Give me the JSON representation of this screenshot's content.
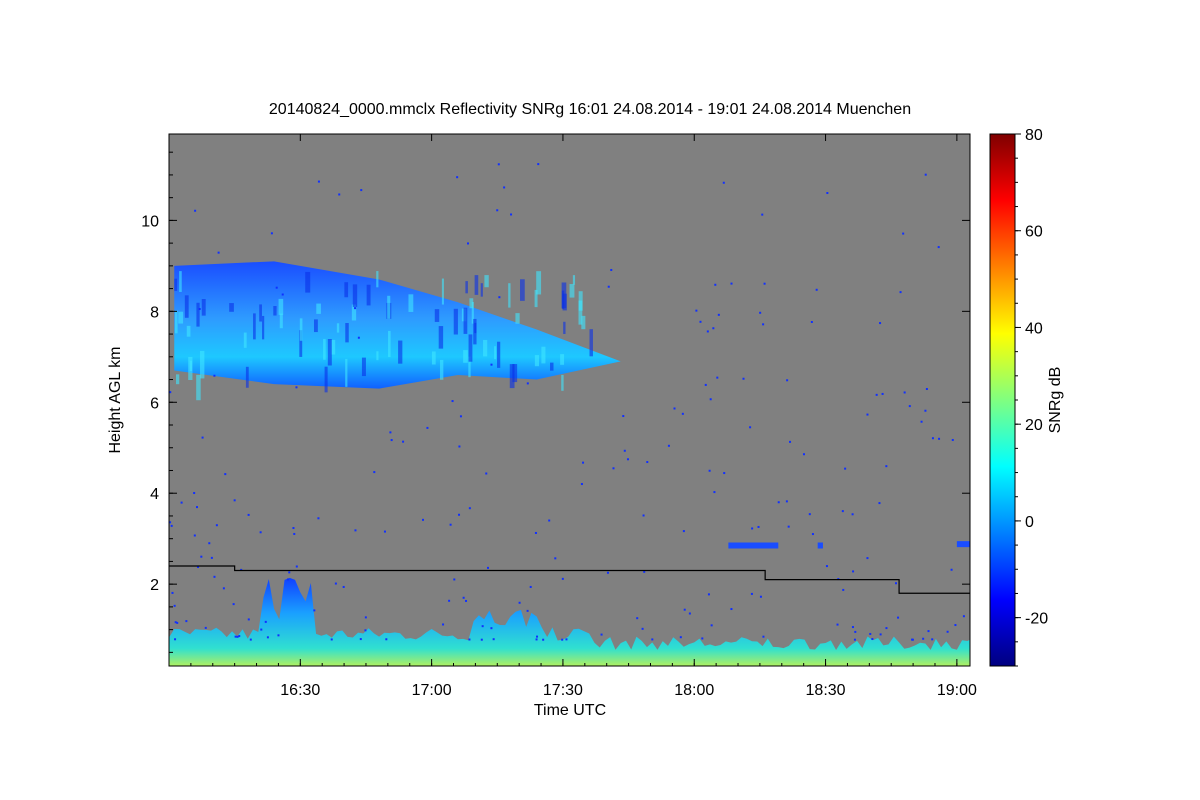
{
  "chart_data": {
    "type": "heatmap",
    "title": "20140824_0000.mmclx Reflectivity SNRg   16:01 24.08.2014 - 19:01 24.08.2014 Muenchen",
    "xlabel": "Time UTC",
    "ylabel": "Height AGL km",
    "colorbar_label": "SNRg dB",
    "xlim_hours": [
      16.0,
      19.05
    ],
    "ylim_km": [
      0.2,
      11.9
    ],
    "x_ticks": [
      {
        "value": 16.5,
        "label": "16:30"
      },
      {
        "value": 17.0,
        "label": "17:00"
      },
      {
        "value": 17.5,
        "label": "17:30"
      },
      {
        "value": 18.0,
        "label": "18:00"
      },
      {
        "value": 18.5,
        "label": "18:30"
      },
      {
        "value": 19.0,
        "label": "19:00"
      }
    ],
    "y_ticks": [
      {
        "value": 2,
        "label": "2"
      },
      {
        "value": 4,
        "label": "4"
      },
      {
        "value": 6,
        "label": "6"
      },
      {
        "value": 8,
        "label": "8"
      },
      {
        "value": 10,
        "label": "10"
      }
    ],
    "colorbar": {
      "range": [
        -30,
        80
      ],
      "ticks": [
        {
          "value": -20,
          "label": "-20"
        },
        {
          "value": 0,
          "label": "0"
        },
        {
          "value": 20,
          "label": "20"
        },
        {
          "value": 40,
          "label": "40"
        },
        {
          "value": 60,
          "label": "60"
        },
        {
          "value": 80,
          "label": "80"
        }
      ],
      "colors": [
        "#00007f",
        "#0000ff",
        "#0080ff",
        "#00ffff",
        "#80ff80",
        "#ffff00",
        "#ff8000",
        "#ff0000",
        "#7f0000"
      ]
    },
    "background_color": "#808080",
    "cirrus_layer": {
      "base_km": [
        6.7,
        6.4,
        6.3,
        6.6,
        6.5,
        6.9
      ],
      "top_km": [
        9.0,
        9.1,
        8.7,
        8.2,
        7.6,
        6.9
      ],
      "time_hours": [
        16.02,
        16.4,
        16.8,
        17.1,
        17.4,
        17.72
      ]
    },
    "boundary_layer_line": {
      "time_hours": [
        16.0,
        16.25,
        16.25,
        18.27,
        18.27,
        18.78,
        18.78,
        19.05
      ],
      "height_km": [
        2.4,
        2.4,
        2.3,
        2.3,
        2.1,
        2.1,
        1.8,
        1.8
      ]
    }
  }
}
